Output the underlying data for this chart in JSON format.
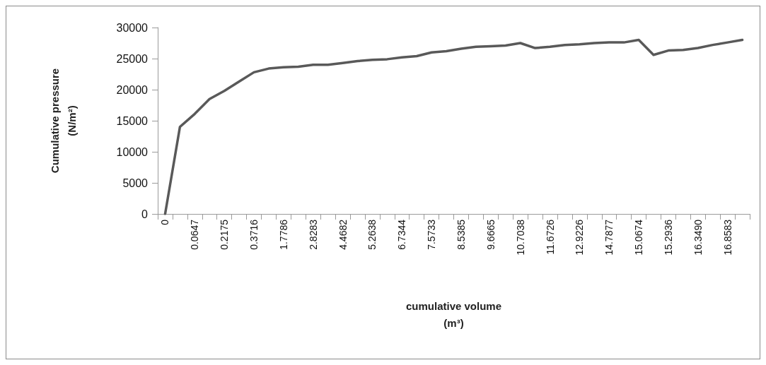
{
  "chart_data": {
    "type": "line",
    "xlabel": "cumulative volume\n(m³)",
    "ylabel": "Cumulative pressure\n(N/m²)",
    "categories": [
      "0",
      null,
      "0.0647",
      null,
      "0.2175",
      null,
      "0.3716",
      null,
      "1.7786",
      null,
      "2.8283",
      null,
      "4.4682",
      null,
      "5.2638",
      null,
      "6.7344",
      null,
      "7.5733",
      null,
      "8.5385",
      null,
      "9.6665",
      null,
      "10.7038",
      null,
      "11.6726",
      null,
      "12.9226",
      null,
      "14.7877",
      null,
      "15.0674",
      null,
      "15.2936",
      null,
      "16.3490",
      null,
      "16.8583",
      null
    ],
    "series": [
      {
        "color": "#595959",
        "values": [
          0,
          14000,
          16100,
          18500,
          19800,
          21300,
          22800,
          23400,
          23600,
          23700,
          24000,
          24000,
          24300,
          24600,
          24800,
          24900,
          25200,
          25400,
          26000,
          26200,
          26600,
          26900,
          27000,
          27100,
          27500,
          26700,
          26900,
          27200,
          27300,
          27500,
          27600,
          27600,
          28000,
          25600,
          26300,
          26400,
          26700,
          27200,
          27600,
          28000
        ]
      }
    ],
    "ylim": [
      0,
      30000
    ],
    "yticks": [
      0,
      5000,
      10000,
      15000,
      20000,
      25000,
      30000
    ],
    "grid": false,
    "marker": "none",
    "line_style": "solid"
  }
}
